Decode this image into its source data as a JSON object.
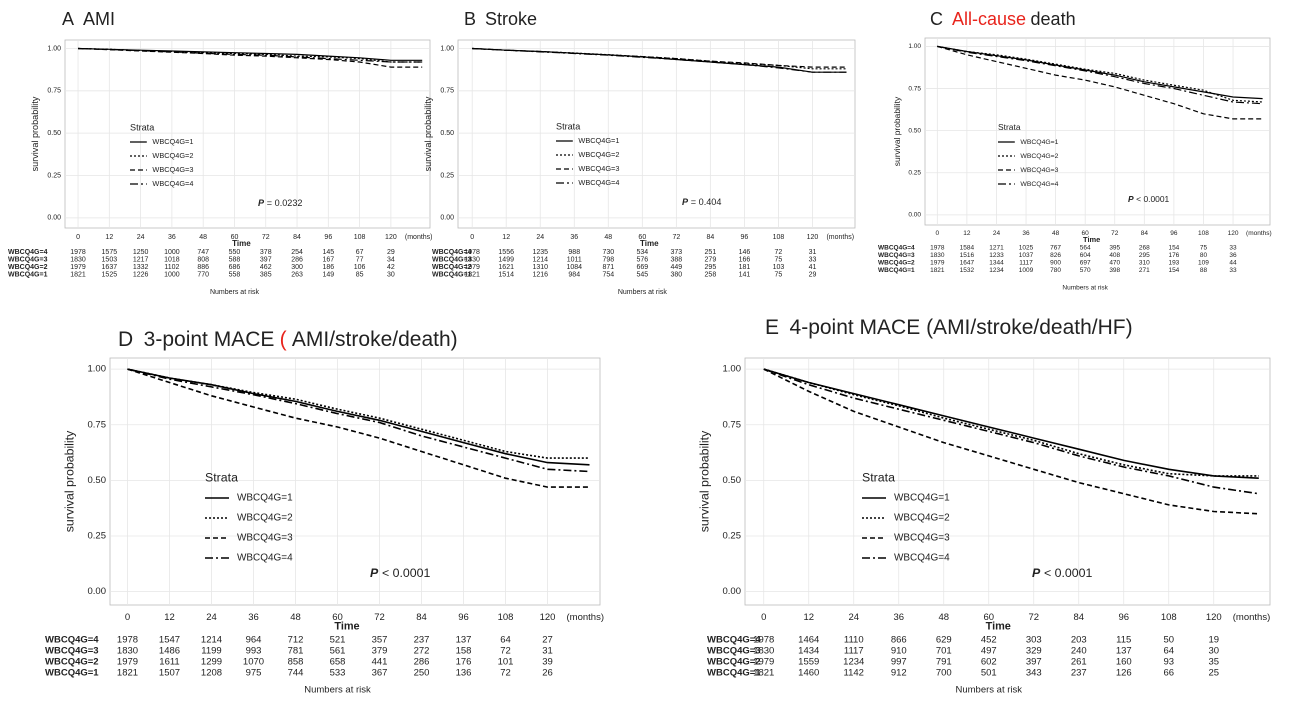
{
  "chart_data": [
    {
      "type": "line",
      "panel": "A",
      "title_parts": [
        {
          "text": "AMI"
        }
      ],
      "ylabel": "survival probability",
      "xlabel": "Time",
      "x_unit": "(months)",
      "legend_title": "Strata",
      "p_label": "P",
      "p_value": "= 0.0232",
      "table_title": "Numbers at risk",
      "xlim": [
        -5,
        135
      ],
      "ylim": [
        -0.06,
        1.05
      ],
      "xticks": [
        0,
        12,
        24,
        36,
        48,
        60,
        72,
        84,
        96,
        108,
        120
      ],
      "yticks": [
        {
          "value": 0,
          "label": "0.00"
        },
        0.25,
        {
          "value": 0.5,
          "label": "0.50"
        },
        0.75,
        {
          "value": 1,
          "label": "1.00"
        }
      ],
      "grid": true,
      "x": [
        0,
        12,
        24,
        36,
        48,
        60,
        72,
        84,
        96,
        108,
        120,
        132
      ],
      "series": [
        {
          "name": "WBCQ4G=1",
          "color": "#000000",
          "dash": "solid",
          "values": [
            1,
            0.995,
            0.99,
            0.985,
            0.98,
            0.975,
            0.97,
            0.965,
            0.955,
            0.945,
            0.93,
            0.93
          ]
        },
        {
          "name": "WBCQ4G=2",
          "color": "#000000",
          "dash": "dotted",
          "values": [
            1,
            0.995,
            0.988,
            0.982,
            0.975,
            0.97,
            0.965,
            0.955,
            0.95,
            0.94,
            0.92,
            0.92
          ]
        },
        {
          "name": "WBCQ4G=3",
          "color": "#000000",
          "dash": "dashed",
          "values": [
            1,
            0.993,
            0.985,
            0.978,
            0.97,
            0.96,
            0.955,
            0.945,
            0.935,
            0.92,
            0.89,
            0.89
          ]
        },
        {
          "name": "WBCQ4G=4",
          "color": "#000000",
          "dash": "dashdot",
          "values": [
            1,
            0.994,
            0.987,
            0.98,
            0.972,
            0.965,
            0.96,
            0.95,
            0.94,
            0.93,
            0.92,
            0.92
          ]
        }
      ],
      "risk_table": [
        {
          "label": "WBCQ4G=4",
          "values": [
            1978,
            1575,
            1250,
            1000,
            747,
            550,
            378,
            254,
            145,
            67,
            29
          ]
        },
        {
          "label": "WBCQ4G=3",
          "values": [
            1830,
            1503,
            1217,
            1018,
            808,
            588,
            397,
            286,
            167,
            77,
            34
          ]
        },
        {
          "label": "WBCQ4G=2",
          "values": [
            1979,
            1637,
            1332,
            1102,
            886,
            686,
            462,
            300,
            186,
            106,
            42
          ]
        },
        {
          "label": "WBCQ4G=1",
          "values": [
            1821,
            1525,
            1226,
            1000,
            770,
            558,
            385,
            263,
            149,
            85,
            30
          ]
        }
      ]
    },
    {
      "type": "line",
      "panel": "B",
      "title_parts": [
        {
          "text": "Stroke"
        }
      ],
      "ylabel": "survival probability",
      "xlabel": "Time",
      "x_unit": "(months)",
      "legend_title": "Strata",
      "p_label": "P",
      "p_value": "= 0.404",
      "table_title": "Numbers at risk",
      "xlim": [
        -5,
        135
      ],
      "ylim": [
        -0.06,
        1.05
      ],
      "xticks": [
        0,
        12,
        24,
        36,
        48,
        60,
        72,
        84,
        96,
        108,
        120
      ],
      "yticks": [
        {
          "value": 0,
          "label": "0.00"
        },
        0.25,
        {
          "value": 0.5,
          "label": "0.50"
        },
        0.75,
        {
          "value": 1,
          "label": "1.00"
        }
      ],
      "grid": true,
      "x": [
        0,
        12,
        24,
        36,
        48,
        60,
        72,
        84,
        96,
        108,
        120,
        132
      ],
      "series": [
        {
          "name": "WBCQ4G=1",
          "color": "#000000",
          "dash": "solid",
          "values": [
            1,
            0.99,
            0.982,
            0.972,
            0.962,
            0.95,
            0.935,
            0.92,
            0.905,
            0.89,
            0.86,
            0.86
          ]
        },
        {
          "name": "WBCQ4G=2",
          "color": "#000000",
          "dash": "dotted",
          "values": [
            1,
            0.99,
            0.982,
            0.973,
            0.963,
            0.952,
            0.94,
            0.925,
            0.91,
            0.9,
            0.88,
            0.88
          ]
        },
        {
          "name": "WBCQ4G=3",
          "color": "#000000",
          "dash": "dashed",
          "values": [
            1,
            0.99,
            0.982,
            0.972,
            0.962,
            0.952,
            0.94,
            0.925,
            0.915,
            0.9,
            0.89,
            0.89
          ]
        },
        {
          "name": "WBCQ4G=4",
          "color": "#000000",
          "dash": "dashdot",
          "values": [
            1,
            0.99,
            0.98,
            0.97,
            0.96,
            0.948,
            0.935,
            0.92,
            0.905,
            0.885,
            0.86,
            0.86
          ]
        }
      ],
      "risk_table": [
        {
          "label": "WBCQ4G=4",
          "values": [
            1978,
            1556,
            1235,
            988,
            730,
            534,
            373,
            251,
            146,
            72,
            31
          ]
        },
        {
          "label": "WBCQ4G=3",
          "values": [
            1830,
            1499,
            1214,
            1011,
            798,
            576,
            388,
            279,
            166,
            75,
            33
          ]
        },
        {
          "label": "WBCQ4G=2",
          "values": [
            1979,
            1621,
            1310,
            1084,
            871,
            669,
            449,
            295,
            181,
            103,
            41
          ]
        },
        {
          "label": "WBCQ4G=1",
          "values": [
            1821,
            1514,
            1216,
            984,
            754,
            545,
            380,
            258,
            141,
            75,
            29
          ]
        }
      ]
    },
    {
      "type": "line",
      "panel": "C",
      "title_parts": [
        {
          "text": "All-cause",
          "color": "#e8241c"
        },
        {
          "text": "death"
        }
      ],
      "ylabel": "survival probability",
      "xlabel": "Time",
      "x_unit": "(months)",
      "legend_title": "Strata",
      "p_label": "P",
      "p_value": "< 0.0001",
      "table_title": "Numbers at risk",
      "xlim": [
        -5,
        135
      ],
      "ylim": [
        -0.06,
        1.05
      ],
      "xticks": [
        0,
        12,
        24,
        36,
        48,
        60,
        72,
        84,
        96,
        108,
        120
      ],
      "yticks": [
        {
          "value": 0,
          "label": "0.00"
        },
        0.25,
        {
          "value": 0.5,
          "label": "0.50"
        },
        0.75,
        {
          "value": 1,
          "label": "1.00"
        }
      ],
      "grid": true,
      "x": [
        0,
        12,
        24,
        36,
        48,
        60,
        72,
        84,
        96,
        108,
        120,
        132
      ],
      "series": [
        {
          "name": "WBCQ4G=1",
          "color": "#000000",
          "dash": "solid",
          "values": [
            1,
            0.97,
            0.945,
            0.92,
            0.89,
            0.86,
            0.83,
            0.79,
            0.76,
            0.73,
            0.7,
            0.69
          ]
        },
        {
          "name": "WBCQ4G=2",
          "color": "#000000",
          "dash": "dotted",
          "values": [
            1,
            0.97,
            0.95,
            0.925,
            0.895,
            0.865,
            0.84,
            0.8,
            0.77,
            0.74,
            0.68,
            0.67
          ]
        },
        {
          "name": "WBCQ4G=3",
          "color": "#000000",
          "dash": "dashed",
          "values": [
            1,
            0.95,
            0.91,
            0.87,
            0.83,
            0.8,
            0.76,
            0.71,
            0.66,
            0.6,
            0.57,
            0.57
          ]
        },
        {
          "name": "WBCQ4G=4",
          "color": "#000000",
          "dash": "dashdot",
          "values": [
            1,
            0.965,
            0.94,
            0.915,
            0.885,
            0.855,
            0.82,
            0.78,
            0.75,
            0.71,
            0.67,
            0.66
          ]
        }
      ],
      "risk_table": [
        {
          "label": "WBCQ4G=4",
          "values": [
            1978,
            1584,
            1271,
            1025,
            767,
            564,
            395,
            268,
            154,
            75,
            33
          ]
        },
        {
          "label": "WBCQ4G=3",
          "values": [
            1830,
            1516,
            1233,
            1037,
            826,
            604,
            408,
            295,
            176,
            80,
            36
          ]
        },
        {
          "label": "WBCQ4G=2",
          "values": [
            1979,
            1647,
            1344,
            1117,
            900,
            697,
            470,
            310,
            193,
            109,
            44
          ]
        },
        {
          "label": "WBCQ4G=1",
          "values": [
            1821,
            1532,
            1234,
            1009,
            780,
            570,
            398,
            271,
            154,
            88,
            33
          ]
        }
      ]
    },
    {
      "type": "line",
      "panel": "D",
      "title_parts": [
        {
          "text": "3-point MACE"
        },
        {
          "text": "(",
          "color": "#e8241c"
        },
        {
          "text": "AMI/stroke/death)"
        }
      ],
      "ylabel": "survival probability",
      "xlabel": "Time",
      "x_unit": "(months)",
      "legend_title": "Strata",
      "p_label": "P",
      "p_value": "< 0.0001",
      "table_title": "Numbers at risk",
      "xlim": [
        -5,
        135
      ],
      "ylim": [
        -0.06,
        1.05
      ],
      "xticks": [
        0,
        12,
        24,
        36,
        48,
        60,
        72,
        84,
        96,
        108,
        120
      ],
      "yticks": [
        {
          "value": 0,
          "label": "0.00"
        },
        0.25,
        {
          "value": 0.5,
          "label": "0.50"
        },
        0.75,
        {
          "value": 1,
          "label": "1.00"
        }
      ],
      "grid": true,
      "x": [
        0,
        12,
        24,
        36,
        48,
        60,
        72,
        84,
        96,
        108,
        120,
        132
      ],
      "series": [
        {
          "name": "WBCQ4G=1",
          "color": "#000000",
          "dash": "solid",
          "values": [
            1,
            0.96,
            0.93,
            0.89,
            0.855,
            0.81,
            0.77,
            0.72,
            0.67,
            0.62,
            0.58,
            0.57
          ]
        },
        {
          "name": "WBCQ4G=2",
          "color": "#000000",
          "dash": "dotted",
          "values": [
            1,
            0.96,
            0.93,
            0.895,
            0.865,
            0.82,
            0.78,
            0.73,
            0.68,
            0.63,
            0.6,
            0.6
          ]
        },
        {
          "name": "WBCQ4G=3",
          "color": "#000000",
          "dash": "dashed",
          "values": [
            1,
            0.94,
            0.88,
            0.83,
            0.78,
            0.74,
            0.69,
            0.63,
            0.57,
            0.51,
            0.47,
            0.47
          ]
        },
        {
          "name": "WBCQ4G=4",
          "color": "#000000",
          "dash": "dashdot",
          "values": [
            1,
            0.955,
            0.92,
            0.885,
            0.845,
            0.8,
            0.76,
            0.7,
            0.65,
            0.6,
            0.55,
            0.54
          ]
        }
      ],
      "risk_table": [
        {
          "label": "WBCQ4G=4",
          "values": [
            1978,
            1547,
            1214,
            964,
            712,
            521,
            357,
            237,
            137,
            64,
            27
          ]
        },
        {
          "label": "WBCQ4G=3",
          "values": [
            1830,
            1486,
            1199,
            993,
            781,
            561,
            379,
            272,
            158,
            72,
            31
          ]
        },
        {
          "label": "WBCQ4G=2",
          "values": [
            1979,
            1611,
            1299,
            1070,
            858,
            658,
            441,
            286,
            176,
            101,
            39
          ]
        },
        {
          "label": "WBCQ4G=1",
          "values": [
            1821,
            1507,
            1208,
            975,
            744,
            533,
            367,
            250,
            136,
            72,
            26
          ]
        }
      ]
    },
    {
      "type": "line",
      "panel": "E",
      "title_parts": [
        {
          "text": "4-point MACE (AMI/stroke/death/HF)"
        }
      ],
      "ylabel": "survival probability",
      "xlabel": "Time",
      "x_unit": "(months)",
      "legend_title": "Strata",
      "p_label": "P",
      "p_value": "< 0.0001",
      "table_title": "Numbers at risk",
      "xlim": [
        -5,
        135
      ],
      "ylim": [
        -0.06,
        1.05
      ],
      "xticks": [
        0,
        12,
        24,
        36,
        48,
        60,
        72,
        84,
        96,
        108,
        120
      ],
      "yticks": [
        {
          "value": 0,
          "label": "0.00"
        },
        0.25,
        {
          "value": 0.5,
          "label": "0.50"
        },
        0.75,
        {
          "value": 1,
          "label": "1.00"
        }
      ],
      "grid": true,
      "x": [
        0,
        12,
        24,
        36,
        48,
        60,
        72,
        84,
        96,
        108,
        120,
        132
      ],
      "series": [
        {
          "name": "WBCQ4G=1",
          "color": "#000000",
          "dash": "solid",
          "values": [
            1,
            0.94,
            0.89,
            0.84,
            0.79,
            0.74,
            0.69,
            0.64,
            0.59,
            0.55,
            0.52,
            0.51
          ]
        },
        {
          "name": "WBCQ4G=2",
          "color": "#000000",
          "dash": "dotted",
          "values": [
            1,
            0.94,
            0.885,
            0.835,
            0.78,
            0.73,
            0.68,
            0.62,
            0.57,
            0.53,
            0.52,
            0.52
          ]
        },
        {
          "name": "WBCQ4G=3",
          "color": "#000000",
          "dash": "dashed",
          "values": [
            1,
            0.9,
            0.81,
            0.74,
            0.67,
            0.61,
            0.55,
            0.49,
            0.44,
            0.39,
            0.36,
            0.35
          ]
        },
        {
          "name": "WBCQ4G=4",
          "color": "#000000",
          "dash": "dashdot",
          "values": [
            1,
            0.93,
            0.87,
            0.82,
            0.77,
            0.72,
            0.67,
            0.61,
            0.56,
            0.52,
            0.47,
            0.44
          ]
        }
      ],
      "risk_table": [
        {
          "label": "WBCQ4G=4",
          "values": [
            1978,
            1464,
            1110,
            866,
            629,
            452,
            303,
            203,
            115,
            50,
            19
          ]
        },
        {
          "label": "WBCQ4G=3",
          "values": [
            1830,
            1434,
            1117,
            910,
            701,
            497,
            329,
            240,
            137,
            64,
            30
          ]
        },
        {
          "label": "WBCQ4G=2",
          "values": [
            1979,
            1559,
            1234,
            997,
            791,
            602,
            397,
            261,
            160,
            93,
            35
          ]
        },
        {
          "label": "WBCQ4G=1",
          "values": [
            1821,
            1460,
            1142,
            912,
            700,
            501,
            343,
            237,
            126,
            66,
            25
          ]
        }
      ]
    }
  ]
}
